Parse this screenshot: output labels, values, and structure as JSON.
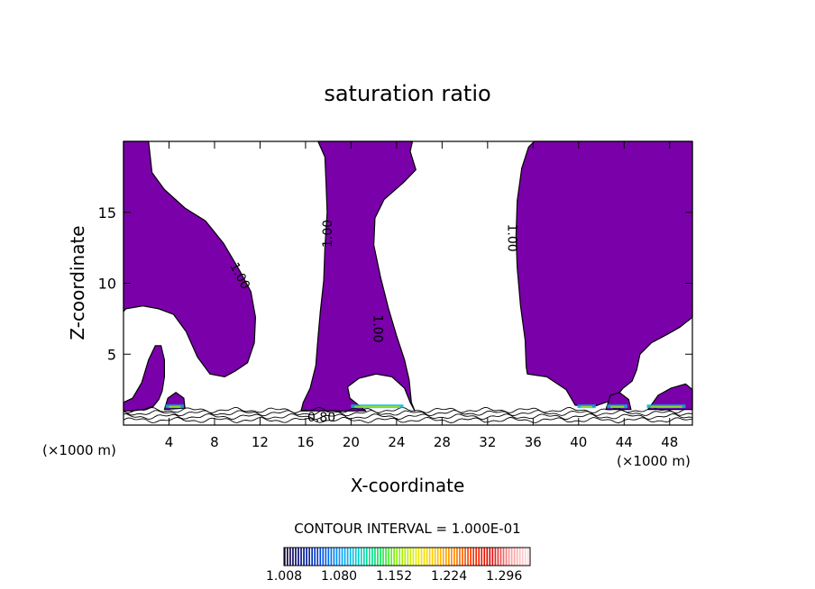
{
  "chart_data": {
    "type": "contour",
    "title": "saturation ratio",
    "xlabel": "X-coordinate",
    "ylabel": "Z-coordinate",
    "x_unit_left": "(×1000 m)",
    "x_unit_right": "(×1000 m)",
    "xlim": [
      0,
      50
    ],
    "ylim": [
      0,
      20
    ],
    "x_ticks": [
      4,
      8,
      12,
      16,
      20,
      24,
      28,
      32,
      36,
      40,
      44,
      48
    ],
    "y_ticks": [
      5,
      10,
      15
    ],
    "fill_color": "#7a00aa",
    "contour_interval_label": "CONTOUR INTERVAL = 1.000E-01",
    "contour_labels": [
      {
        "text": "1.00",
        "x": 10.2,
        "z": 10.5,
        "rotation": 62
      },
      {
        "text": "1.00",
        "x": 18.0,
        "z": 13.5,
        "rotation": -90
      },
      {
        "text": "1.00",
        "x": 22.3,
        "z": 6.8,
        "rotation": 90
      },
      {
        "text": "1.00",
        "x": 34.1,
        "z": 13.2,
        "rotation": 90
      },
      {
        "text": "0.80",
        "x": 17.4,
        "z": 0.5,
        "rotation": 0
      }
    ],
    "regions": [
      {
        "name": "supersaturated-region-left",
        "points": [
          [
            0,
            20
          ],
          [
            2.2,
            20
          ],
          [
            2.5,
            17.8
          ],
          [
            3.6,
            16.6
          ],
          [
            5.4,
            15.3
          ],
          [
            7.2,
            14.4
          ],
          [
            8.8,
            12.8
          ],
          [
            10.2,
            10.9
          ],
          [
            11.2,
            9.4
          ],
          [
            11.6,
            7.6
          ],
          [
            11.5,
            5.8
          ],
          [
            10.9,
            4.4
          ],
          [
            9.8,
            3.8
          ],
          [
            8.9,
            3.4
          ],
          [
            7.6,
            3.6
          ],
          [
            6.5,
            4.8
          ],
          [
            5.5,
            6.6
          ],
          [
            4.4,
            7.8
          ],
          [
            3.1,
            8.2
          ],
          [
            1.7,
            8.4
          ],
          [
            0.2,
            8.2
          ],
          [
            0,
            8.0
          ]
        ]
      },
      {
        "name": "supersaturated-region-left-lower",
        "points": [
          [
            0,
            1.6
          ],
          [
            0.8,
            1.9
          ],
          [
            1.6,
            3.0
          ],
          [
            2.2,
            4.6
          ],
          [
            2.8,
            5.6
          ],
          [
            3.3,
            5.6
          ],
          [
            3.6,
            4.6
          ],
          [
            3.6,
            3.4
          ],
          [
            3.4,
            2.4
          ],
          [
            3.1,
            1.8
          ],
          [
            2.6,
            1.3
          ],
          [
            1.8,
            1.1
          ],
          [
            0.7,
            1.0
          ],
          [
            0,
            1.0
          ]
        ]
      },
      {
        "name": "supersaturated-region-center",
        "points": [
          [
            17.1,
            20
          ],
          [
            17.7,
            18.9
          ],
          [
            17.8,
            17.2
          ],
          [
            17.9,
            15.0
          ],
          [
            17.7,
            12.5
          ],
          [
            17.6,
            10.2
          ],
          [
            17.3,
            8.0
          ],
          [
            17.1,
            6.2
          ],
          [
            16.9,
            4.2
          ],
          [
            16.4,
            2.6
          ],
          [
            15.8,
            1.6
          ],
          [
            15.6,
            1.0
          ],
          [
            21.3,
            1.0
          ],
          [
            19.9,
            1.9
          ],
          [
            19.7,
            2.7
          ],
          [
            20.7,
            3.3
          ],
          [
            22.2,
            3.6
          ],
          [
            23.6,
            3.4
          ],
          [
            24.7,
            2.6
          ],
          [
            25.2,
            1.6
          ],
          [
            25.6,
            1.0
          ],
          [
            25.3,
            1.6
          ],
          [
            25.1,
            3.2
          ],
          [
            24.7,
            4.6
          ],
          [
            24.0,
            6.3
          ],
          [
            23.3,
            8.2
          ],
          [
            22.6,
            10.4
          ],
          [
            22.0,
            12.7
          ],
          [
            22.1,
            14.6
          ],
          [
            22.9,
            15.9
          ],
          [
            24.6,
            17.1
          ],
          [
            25.7,
            18.0
          ],
          [
            25.2,
            19.3
          ],
          [
            25.4,
            20
          ]
        ]
      },
      {
        "name": "supersaturated-region-right",
        "points": [
          [
            36.1,
            20
          ],
          [
            35.6,
            19.6
          ],
          [
            35.0,
            18.1
          ],
          [
            34.6,
            15.8
          ],
          [
            34.5,
            13.3
          ],
          [
            34.6,
            11.1
          ],
          [
            34.9,
            8.4
          ],
          [
            35.3,
            6.0
          ],
          [
            35.4,
            4.1
          ],
          [
            35.5,
            3.6
          ],
          [
            37.2,
            3.4
          ],
          [
            38.9,
            2.5
          ],
          [
            39.7,
            1.4
          ],
          [
            41.3,
            1.3
          ],
          [
            43.1,
            1.8
          ],
          [
            43.9,
            2.6
          ],
          [
            44.7,
            3.1
          ],
          [
            45.1,
            3.9
          ],
          [
            45.4,
            5.0
          ],
          [
            46.4,
            5.8
          ],
          [
            47.8,
            6.4
          ],
          [
            48.9,
            6.9
          ],
          [
            50,
            7.6
          ],
          [
            50,
            20
          ]
        ]
      },
      {
        "name": "supersaturated-region-right-lower",
        "points": [
          [
            46.1,
            1.1
          ],
          [
            47.0,
            2.1
          ],
          [
            48.1,
            2.6
          ],
          [
            49.4,
            2.9
          ],
          [
            50,
            2.5
          ],
          [
            50,
            1.1
          ]
        ]
      },
      {
        "name": "supersaturated-patch-4",
        "points": [
          [
            3.6,
            1.1
          ],
          [
            3.9,
            1.9
          ],
          [
            4.6,
            2.3
          ],
          [
            5.3,
            1.9
          ],
          [
            5.4,
            1.2
          ]
        ]
      },
      {
        "name": "supersaturated-patch-42",
        "points": [
          [
            42.4,
            1.1
          ],
          [
            42.8,
            2.1
          ],
          [
            43.6,
            2.3
          ],
          [
            44.4,
            1.8
          ],
          [
            44.6,
            1.1
          ]
        ]
      }
    ],
    "colorbar": {
      "min": 1.008,
      "max": 1.33,
      "tick_labels": [
        "1.008",
        "1.080",
        "1.152",
        "1.224",
        "1.296"
      ],
      "colors": [
        "#1a0040",
        "#00148c",
        "#0050e6",
        "#00a0ff",
        "#00d2c8",
        "#00e664",
        "#8cf000",
        "#e6f000",
        "#ffc800",
        "#ff8c00",
        "#ff3200",
        "#dc0000",
        "#ff9696",
        "#ffdcdc"
      ]
    }
  }
}
